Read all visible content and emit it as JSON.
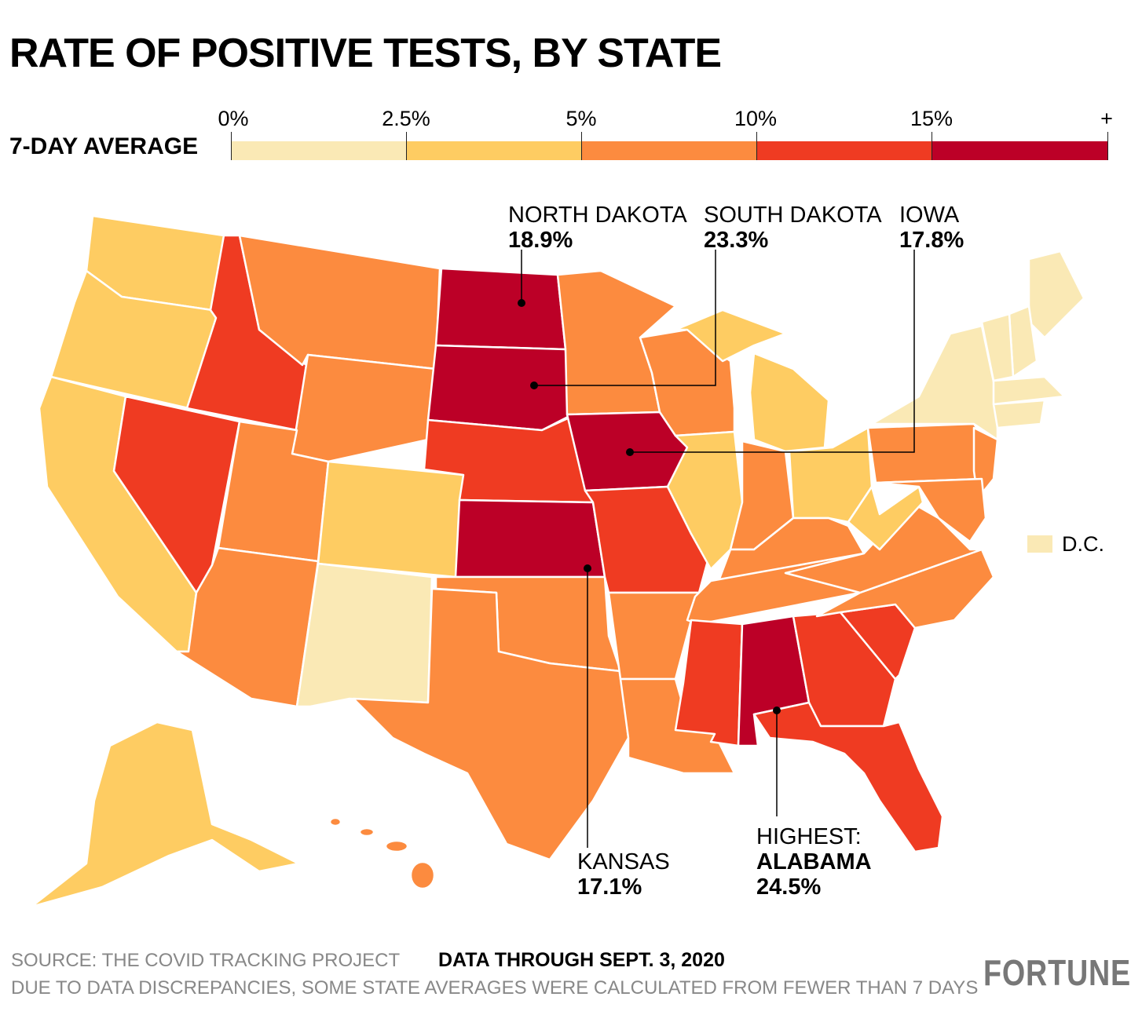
{
  "title": "RATE OF POSITIVE TESTS, BY STATE",
  "legend": {
    "label": "7-DAY AVERAGE",
    "ticks": [
      "0%",
      "2.5%",
      "5%",
      "10%",
      "15%",
      "+"
    ],
    "bins": [
      {
        "name": "0-2.5",
        "color": "#FAE9B5"
      },
      {
        "name": "2.5-5",
        "color": "#FECC62"
      },
      {
        "name": "5-10",
        "color": "#FC8B3F"
      },
      {
        "name": "10-15",
        "color": "#EF3B22"
      },
      {
        "name": "15+",
        "color": "#BC0027"
      }
    ]
  },
  "states": {
    "WA": 1,
    "OR": 1,
    "CA": 1,
    "ID": 3,
    "NV": 3,
    "MT": 2,
    "WY": 2,
    "UT": 2,
    "AZ": 2,
    "CO": 1,
    "NM": 0,
    "ND": 4,
    "SD": 4,
    "NE": 3,
    "KS": 4,
    "OK": 2,
    "TX": 2,
    "MN": 2,
    "IA": 4,
    "MO": 3,
    "AR": 2,
    "LA": 2,
    "WI": 2,
    "IL": 1,
    "MI": 1,
    "IN": 2,
    "OH": 1,
    "KY": 2,
    "TN": 2,
    "MS": 3,
    "AL": 4,
    "GA": 3,
    "FL": 3,
    "SC": 3,
    "NC": 2,
    "VA": 2,
    "WV": 1,
    "PA": 2,
    "NY": 0,
    "NJ": 2,
    "MD": 2,
    "ME": 0,
    "NH": 0,
    "VT": 0,
    "MA": 0,
    "CT": 0,
    "AK": 1,
    "HI": 2,
    "DC": 0
  },
  "annotations": {
    "nd": {
      "name": "NORTH DAKOTA",
      "value": "18.9%"
    },
    "sd": {
      "name": "SOUTH DAKOTA",
      "value": "23.3%"
    },
    "ia": {
      "name": "IOWA",
      "value": "17.8%"
    },
    "ks": {
      "name": "KANSAS",
      "value": "17.1%"
    },
    "al": {
      "prefix": "HIGHEST:",
      "name": "ALABAMA",
      "value": "24.5%"
    }
  },
  "dc_label": "D.C.",
  "footer": {
    "source": "SOURCE: THE COVID TRACKING PROJECT",
    "note": "DUE TO DATA DISCREPANCIES, SOME STATE AVERAGES WERE CALCULATED FROM FEWER THAN 7 DAYS",
    "date": "DATA THROUGH SEPT. 3, 2020",
    "logo": "FORTUNE"
  }
}
